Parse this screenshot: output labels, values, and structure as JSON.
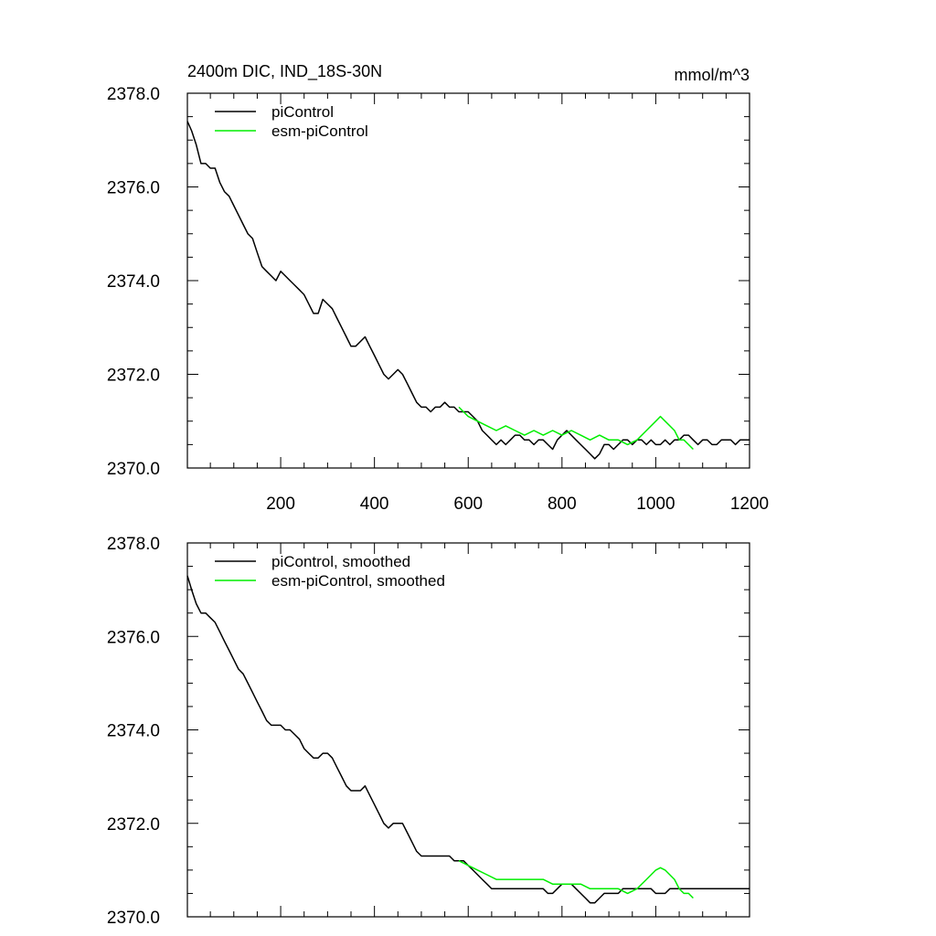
{
  "chart_data": [
    {
      "type": "line",
      "title": "2400m DIC, IND_18S-30N",
      "units": "mmol/m^3",
      "xlabel": "",
      "ylabel": "",
      "xlim": [
        1,
        1200
      ],
      "ylim": [
        2370.0,
        2378.0
      ],
      "x_ticks": [
        200,
        400,
        600,
        800,
        1000,
        1200
      ],
      "x_tick_labels": [
        "200",
        "400",
        "600",
        "800",
        "1000",
        "1200"
      ],
      "y_ticks": [
        2370.0,
        2372.0,
        2374.0,
        2376.0,
        2378.0
      ],
      "y_tick_labels": [
        "2370.0",
        "2372.0",
        "2374.0",
        "2376.0",
        "2378.0"
      ],
      "grid": false,
      "legend_position": "top-left",
      "series": [
        {
          "name": "piControl",
          "color": "#000000",
          "x": [
            1,
            10,
            20,
            30,
            40,
            50,
            60,
            70,
            80,
            90,
            100,
            110,
            120,
            130,
            140,
            150,
            160,
            170,
            180,
            190,
            200,
            210,
            220,
            230,
            240,
            250,
            260,
            270,
            280,
            290,
            300,
            310,
            320,
            330,
            340,
            350,
            360,
            370,
            380,
            390,
            400,
            410,
            420,
            430,
            440,
            450,
            460,
            470,
            480,
            490,
            500,
            510,
            520,
            530,
            540,
            550,
            560,
            570,
            580,
            590,
            600,
            610,
            620,
            630,
            640,
            650,
            660,
            670,
            680,
            690,
            700,
            710,
            720,
            730,
            740,
            750,
            760,
            770,
            780,
            790,
            800,
            810,
            820,
            830,
            840,
            850,
            860,
            870,
            880,
            890,
            900,
            910,
            920,
            930,
            940,
            950,
            960,
            970,
            980,
            990,
            1000,
            1010,
            1020,
            1030,
            1040,
            1050,
            1060,
            1070,
            1080,
            1090,
            1100,
            1110,
            1120,
            1130,
            1140,
            1150,
            1160,
            1170,
            1180,
            1190,
            1200
          ],
          "values": [
            2377.4,
            2377.2,
            2376.9,
            2376.5,
            2376.5,
            2376.4,
            2376.4,
            2376.1,
            2375.9,
            2375.8,
            2375.6,
            2375.4,
            2375.2,
            2375.0,
            2374.9,
            2374.6,
            2374.3,
            2374.2,
            2374.1,
            2374.0,
            2374.2,
            2374.1,
            2374.0,
            2373.9,
            2373.8,
            2373.7,
            2373.5,
            2373.3,
            2373.3,
            2373.6,
            2373.5,
            2373.4,
            2373.2,
            2373.0,
            2372.8,
            2372.6,
            2372.6,
            2372.7,
            2372.8,
            2372.6,
            2372.4,
            2372.2,
            2372.0,
            2371.9,
            2372.0,
            2372.1,
            2372.0,
            2371.8,
            2371.6,
            2371.4,
            2371.3,
            2371.3,
            2371.2,
            2371.3,
            2371.3,
            2371.4,
            2371.3,
            2371.3,
            2371.2,
            2371.2,
            2371.2,
            2371.1,
            2371.0,
            2370.8,
            2370.7,
            2370.6,
            2370.5,
            2370.6,
            2370.5,
            2370.6,
            2370.7,
            2370.7,
            2370.6,
            2370.6,
            2370.5,
            2370.6,
            2370.6,
            2370.5,
            2370.4,
            2370.6,
            2370.7,
            2370.8,
            2370.7,
            2370.6,
            2370.5,
            2370.4,
            2370.3,
            2370.2,
            2370.3,
            2370.5,
            2370.5,
            2370.4,
            2370.5,
            2370.6,
            2370.6,
            2370.5,
            2370.6,
            2370.6,
            2370.5,
            2370.6,
            2370.5,
            2370.5,
            2370.6,
            2370.5,
            2370.6,
            2370.6,
            2370.7,
            2370.7,
            2370.6,
            2370.5,
            2370.6,
            2370.6,
            2370.5,
            2370.5,
            2370.6,
            2370.6,
            2370.6,
            2370.5,
            2370.6,
            2370.6,
            2370.6
          ]
        },
        {
          "name": "esm-piControl",
          "color": "#00ee00",
          "x": [
            580,
            600,
            620,
            640,
            660,
            680,
            700,
            720,
            740,
            760,
            780,
            800,
            820,
            840,
            860,
            880,
            900,
            920,
            940,
            960,
            980,
            1000,
            1010,
            1020,
            1030,
            1040,
            1050,
            1060,
            1070,
            1080
          ],
          "values": [
            2371.3,
            2371.1,
            2371.0,
            2370.9,
            2370.8,
            2370.9,
            2370.8,
            2370.7,
            2370.8,
            2370.7,
            2370.8,
            2370.7,
            2370.8,
            2370.7,
            2370.6,
            2370.7,
            2370.6,
            2370.6,
            2370.5,
            2370.6,
            2370.8,
            2371.0,
            2371.1,
            2371.0,
            2370.9,
            2370.8,
            2370.6,
            2370.6,
            2370.5,
            2370.4
          ]
        }
      ]
    },
    {
      "type": "line",
      "title": "",
      "xlabel": "",
      "ylabel": "",
      "xlim": [
        1,
        1200
      ],
      "ylim": [
        2370.0,
        2378.0
      ],
      "y_ticks": [
        2370.0,
        2372.0,
        2374.0,
        2376.0,
        2378.0
      ],
      "y_tick_labels": [
        "2370.0",
        "2372.0",
        "2374.0",
        "2376.0",
        "2378.0"
      ],
      "grid": false,
      "legend_position": "top-left",
      "series": [
        {
          "name": "piControl, smoothed",
          "color": "#000000",
          "x": [
            1,
            10,
            20,
            30,
            40,
            50,
            60,
            70,
            80,
            90,
            100,
            110,
            120,
            130,
            140,
            150,
            160,
            170,
            180,
            190,
            200,
            210,
            220,
            230,
            240,
            250,
            260,
            270,
            280,
            290,
            300,
            310,
            320,
            330,
            340,
            350,
            360,
            370,
            380,
            390,
            400,
            410,
            420,
            430,
            440,
            450,
            460,
            470,
            480,
            490,
            500,
            510,
            520,
            530,
            540,
            550,
            560,
            570,
            580,
            590,
            600,
            610,
            620,
            630,
            640,
            650,
            660,
            670,
            680,
            690,
            700,
            710,
            720,
            730,
            740,
            750,
            760,
            770,
            780,
            790,
            800,
            810,
            820,
            830,
            840,
            850,
            860,
            870,
            880,
            890,
            900,
            910,
            920,
            930,
            940,
            950,
            960,
            970,
            980,
            990,
            1000,
            1010,
            1020,
            1030,
            1040,
            1050,
            1060,
            1070,
            1080,
            1090,
            1100,
            1110,
            1120,
            1130,
            1140,
            1150,
            1160,
            1170,
            1180,
            1190,
            1200
          ],
          "values": [
            2377.3,
            2377.0,
            2376.7,
            2376.5,
            2376.5,
            2376.4,
            2376.3,
            2376.1,
            2375.9,
            2375.7,
            2375.5,
            2375.3,
            2375.2,
            2375.0,
            2374.8,
            2374.6,
            2374.4,
            2374.2,
            2374.1,
            2374.1,
            2374.1,
            2374.0,
            2374.0,
            2373.9,
            2373.8,
            2373.6,
            2373.5,
            2373.4,
            2373.4,
            2373.5,
            2373.5,
            2373.4,
            2373.2,
            2373.0,
            2372.8,
            2372.7,
            2372.7,
            2372.7,
            2372.8,
            2372.6,
            2372.4,
            2372.2,
            2372.0,
            2371.9,
            2372.0,
            2372.0,
            2372.0,
            2371.8,
            2371.6,
            2371.4,
            2371.3,
            2371.3,
            2371.3,
            2371.3,
            2371.3,
            2371.3,
            2371.3,
            2371.2,
            2371.2,
            2371.2,
            2371.1,
            2371.0,
            2370.9,
            2370.8,
            2370.7,
            2370.6,
            2370.6,
            2370.6,
            2370.6,
            2370.6,
            2370.6,
            2370.6,
            2370.6,
            2370.6,
            2370.6,
            2370.6,
            2370.6,
            2370.5,
            2370.5,
            2370.6,
            2370.7,
            2370.7,
            2370.7,
            2370.6,
            2370.5,
            2370.4,
            2370.3,
            2370.3,
            2370.4,
            2370.5,
            2370.5,
            2370.5,
            2370.5,
            2370.6,
            2370.6,
            2370.6,
            2370.6,
            2370.6,
            2370.6,
            2370.6,
            2370.5,
            2370.5,
            2370.5,
            2370.6,
            2370.6,
            2370.6,
            2370.6,
            2370.6,
            2370.6,
            2370.6,
            2370.6,
            2370.6,
            2370.6,
            2370.6,
            2370.6,
            2370.6,
            2370.6,
            2370.6,
            2370.6,
            2370.6,
            2370.6
          ]
        },
        {
          "name": "esm-piControl, smoothed",
          "color": "#00ee00",
          "x": [
            580,
            600,
            620,
            640,
            660,
            680,
            700,
            720,
            740,
            760,
            780,
            800,
            820,
            840,
            860,
            880,
            900,
            920,
            940,
            960,
            980,
            1000,
            1010,
            1020,
            1030,
            1040,
            1050,
            1060,
            1070,
            1080
          ],
          "values": [
            2371.2,
            2371.1,
            2371.0,
            2370.9,
            2370.8,
            2370.8,
            2370.8,
            2370.8,
            2370.8,
            2370.8,
            2370.7,
            2370.7,
            2370.7,
            2370.7,
            2370.6,
            2370.6,
            2370.6,
            2370.6,
            2370.5,
            2370.6,
            2370.8,
            2371.0,
            2371.05,
            2371.0,
            2370.9,
            2370.8,
            2370.6,
            2370.5,
            2370.5,
            2370.4
          ]
        }
      ]
    }
  ]
}
